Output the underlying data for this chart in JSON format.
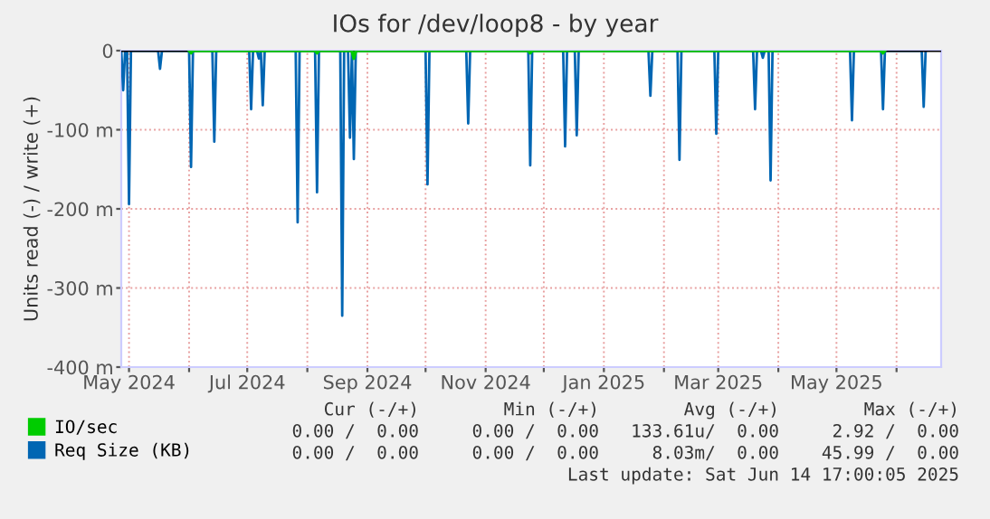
{
  "chart_data": {
    "type": "line",
    "title": "IOs for /dev/loop8 - by year",
    "ylabel": "Units read (-) / write (+)",
    "series": [
      {
        "name": "IO/sec",
        "color": "#00cc00",
        "x": [
          "2024-06-01",
          "2024-06-02",
          "2024-06-03",
          "2024-08-05",
          "2024-08-06",
          "2024-08-07",
          "2024-08-24",
          "2024-08-25",
          "2024-08-26",
          "2024-11-23",
          "2024-11-24",
          "2024-11-25",
          "2025-05-24",
          "2025-05-25",
          "2025-05-26"
        ],
        "values": [
          0,
          -3,
          0,
          0,
          -3,
          0,
          0,
          -10,
          0,
          0,
          -3,
          0,
          0,
          -3,
          0
        ]
      },
      {
        "name": "Req Size (KB)",
        "color": "#0066b3",
        "x": [
          "2024-04-27",
          "2024-04-28",
          "2024-04-29",
          "2024-04-30",
          "2024-05-01",
          "2024-05-02",
          "2024-05-16",
          "2024-05-17",
          "2024-05-18",
          "2024-06-01",
          "2024-06-02",
          "2024-06-03",
          "2024-06-13",
          "2024-06-14",
          "2024-06-15",
          "2024-07-02",
          "2024-07-03",
          "2024-07-04",
          "2024-07-06",
          "2024-07-07",
          "2024-07-08",
          "2024-07-09",
          "2024-07-10",
          "2024-07-26",
          "2024-07-27",
          "2024-07-28",
          "2024-08-05",
          "2024-08-06",
          "2024-08-07",
          "2024-08-18",
          "2024-08-19",
          "2024-08-20",
          "2024-08-22",
          "2024-08-23",
          "2024-08-24",
          "2024-08-25",
          "2024-08-26",
          "2024-10-01",
          "2024-10-02",
          "2024-10-03",
          "2024-10-22",
          "2024-10-23",
          "2024-10-24",
          "2024-11-23",
          "2024-11-24",
          "2024-11-25",
          "2024-12-11",
          "2024-12-12",
          "2024-12-13",
          "2024-12-17",
          "2024-12-18",
          "2024-12-19",
          "2025-01-24",
          "2025-01-25",
          "2025-01-26",
          "2025-02-08",
          "2025-02-09",
          "2025-02-10",
          "2025-02-27",
          "2025-02-28",
          "2025-03-01",
          "2025-03-19",
          "2025-03-20",
          "2025-03-21",
          "2025-03-23",
          "2025-03-24",
          "2025-03-25",
          "2025-03-27",
          "2025-03-28",
          "2025-03-29",
          "2025-05-08",
          "2025-05-09",
          "2025-05-10",
          "2025-05-24",
          "2025-05-25",
          "2025-05-26",
          "2025-06-14",
          "2025-06-15",
          "2025-06-16"
        ],
        "values": [
          0,
          -50,
          0,
          0,
          -194,
          0,
          0,
          -23,
          0,
          0,
          -147,
          0,
          0,
          -115,
          0,
          0,
          -74,
          0,
          0,
          -10,
          0,
          -69,
          0,
          0,
          -217,
          0,
          0,
          -179,
          0,
          0,
          -335,
          0,
          0,
          -110,
          0,
          -137,
          0,
          0,
          -169,
          0,
          0,
          -92,
          0,
          0,
          -145,
          0,
          0,
          -121,
          0,
          0,
          -107,
          0,
          0,
          -57,
          0,
          0,
          -138,
          0,
          0,
          -105,
          0,
          0,
          -74,
          0,
          0,
          -9,
          0,
          0,
          -164,
          0,
          0,
          -88,
          0,
          0,
          -74,
          0,
          0,
          -71,
          0
        ]
      }
    ],
    "xlim": [
      "2024-04-27",
      "2025-06-24"
    ],
    "xticks": [
      {
        "value": "2024-05-01",
        "label": "May 2024"
      },
      {
        "value": "2024-06-01",
        "label": null
      },
      {
        "value": "2024-07-01",
        "label": "Jul 2024"
      },
      {
        "value": "2024-08-01",
        "label": null
      },
      {
        "value": "2024-09-01",
        "label": "Sep 2024"
      },
      {
        "value": "2024-10-01",
        "label": null
      },
      {
        "value": "2024-11-01",
        "label": "Nov 2024"
      },
      {
        "value": "2024-12-01",
        "label": null
      },
      {
        "value": "2025-01-01",
        "label": "Jan 2025"
      },
      {
        "value": "2025-02-01",
        "label": null
      },
      {
        "value": "2025-03-01",
        "label": "Mar 2025"
      },
      {
        "value": "2025-04-01",
        "label": null
      },
      {
        "value": "2025-05-01",
        "label": "May 2025"
      },
      {
        "value": "2025-06-01",
        "label": null
      }
    ],
    "ylim": [
      -400,
      0
    ],
    "yticks": [
      {
        "value": -400,
        "label": "-400 m"
      },
      {
        "value": -300,
        "label": "-300 m"
      },
      {
        "value": -200,
        "label": "-200 m"
      },
      {
        "value": -100,
        "label": "-100 m"
      },
      0
    ],
    "ref_lines": [
      {
        "axis": "y",
        "value": 0,
        "label": null,
        "color": "#000000"
      }
    ],
    "grid": true,
    "legend": "bottom left",
    "annotations": [
      "        Cur (-/+)        Min (-/+)        Avg (-/+)        Max (-/+)",
      "     0.00 /  0.00     0.00 /  0.00   133.61u/  0.00     2.92 /  0.00",
      "     0.00 /  0.00     0.00 /  0.00     8.03m/  0.00    45.99 /  0.00",
      "Last update: Sat Jun 14 17:00:05 2025"
    ]
  }
}
